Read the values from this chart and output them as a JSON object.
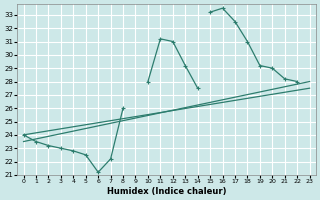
{
  "xlabel": "Humidex (Indice chaleur)",
  "xlim": [
    -0.5,
    23.5
  ],
  "ylim": [
    21,
    33.8
  ],
  "yticks": [
    21,
    22,
    23,
    24,
    25,
    26,
    27,
    28,
    29,
    30,
    31,
    32,
    33
  ],
  "xticks": [
    0,
    1,
    2,
    3,
    4,
    5,
    6,
    7,
    8,
    9,
    10,
    11,
    12,
    13,
    14,
    15,
    16,
    17,
    18,
    19,
    20,
    21,
    22,
    23
  ],
  "bg_color": "#cde8e8",
  "grid_color": "#ffffff",
  "line_color": "#2d7d6e",
  "marker_line_x": [
    0,
    1,
    2,
    3,
    4,
    5,
    6,
    7,
    8,
    10,
    11,
    12,
    13,
    14,
    15,
    16,
    17,
    18,
    19,
    20,
    21,
    22
  ],
  "marker_line_y": [
    24.0,
    23.5,
    23.2,
    23.0,
    22.8,
    22.5,
    21.2,
    22.2,
    26.0,
    28.0,
    31.2,
    31.0,
    29.2,
    27.5,
    33.2,
    33.5,
    32.5,
    31.0,
    29.2,
    29.0,
    28.2,
    28.0
  ],
  "straight_line1_x": [
    0,
    23
  ],
  "straight_line1_y": [
    23.5,
    28.0
  ],
  "straight_line2_x": [
    0,
    23
  ],
  "straight_line2_y": [
    24.0,
    27.5
  ]
}
